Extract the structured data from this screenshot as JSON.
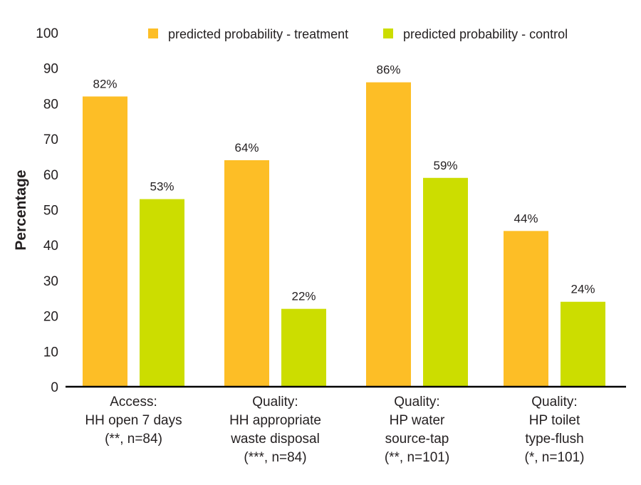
{
  "chart_data": {
    "type": "bar",
    "title": "",
    "xlabel": "",
    "ylabel": "Percentage",
    "ylim": [
      0,
      100
    ],
    "yticks": [
      0,
      10,
      20,
      30,
      40,
      50,
      60,
      70,
      80,
      90,
      100
    ],
    "grid": false,
    "legend_position": "top-right",
    "categories": [
      [
        "Access:",
        "HH open 7 days",
        "(**, n=84)"
      ],
      [
        "Quality:",
        "HH appropriate",
        "waste disposal",
        "(***, n=84)"
      ],
      [
        "Quality:",
        "HP water",
        "source-tap",
        "(**, n=101)"
      ],
      [
        "Quality:",
        "HP toilet",
        "type-flush",
        "(*, n=101)"
      ]
    ],
    "series": [
      {
        "name": "predicted probability - treatment",
        "color": "#FDBE26",
        "values": [
          82,
          64,
          86,
          44
        ],
        "labels": [
          "82%",
          "64%",
          "86%",
          "44%"
        ]
      },
      {
        "name": "predicted probability - control",
        "color": "#CCDD00",
        "values": [
          53,
          22,
          59,
          24
        ],
        "labels": [
          "53%",
          "22%",
          "59%",
          "24%"
        ]
      }
    ]
  }
}
